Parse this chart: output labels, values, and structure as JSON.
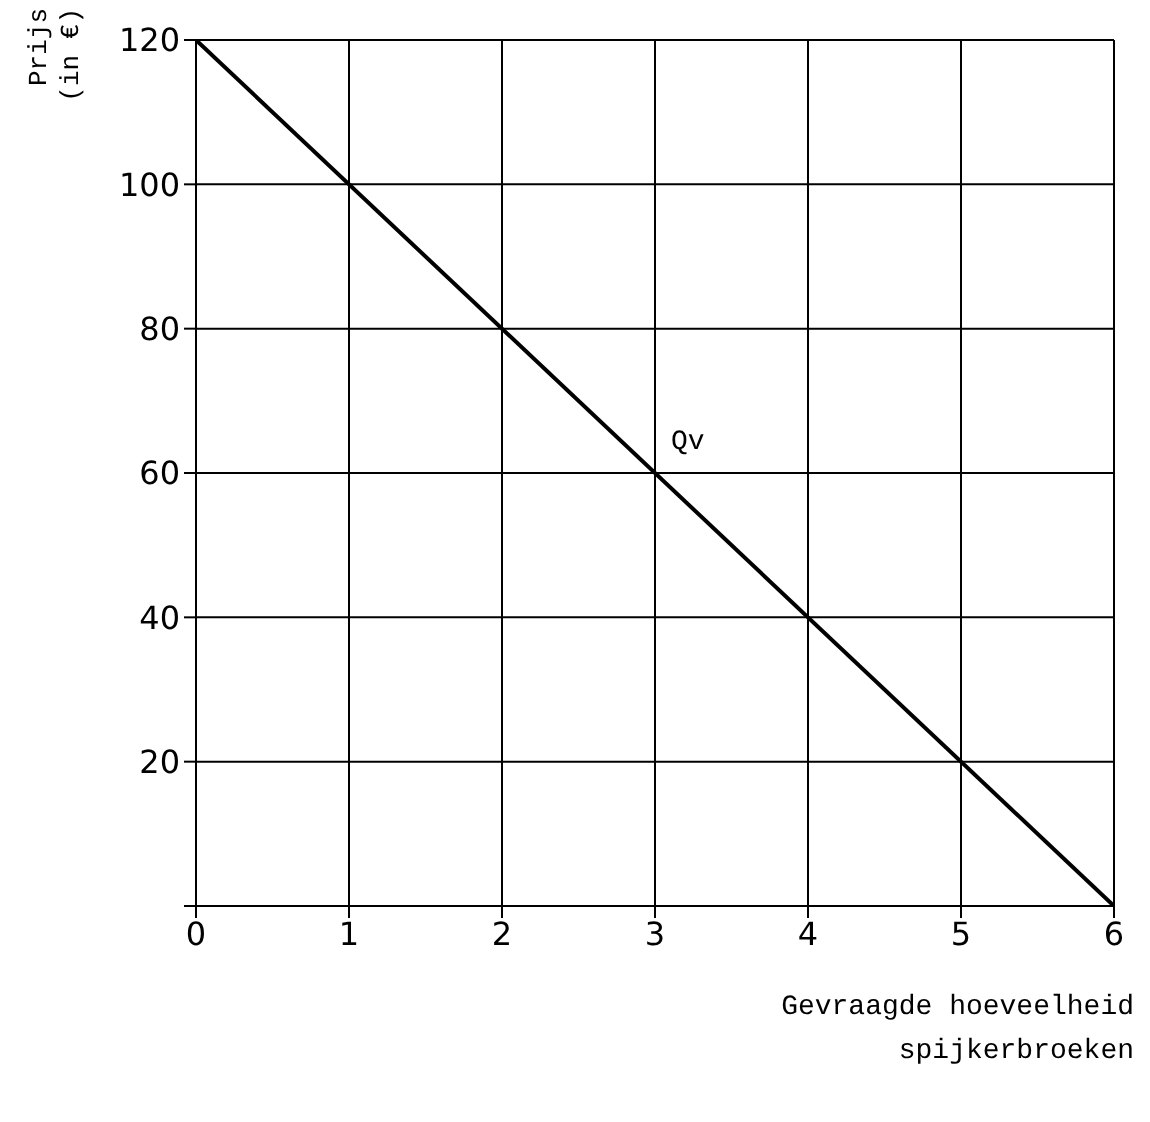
{
  "chart_data": {
    "type": "line",
    "xlabel": "Gevraagde hoeveelheid spijkerbroeken",
    "ylabel": "Prijs (in €)",
    "x": [
      0,
      6
    ],
    "series": [
      {
        "color": "#000000",
        "values": [
          120,
          0
        ]
      }
    ],
    "xlim": [
      0,
      6
    ],
    "xticks": [
      0,
      1,
      2,
      3,
      4,
      5,
      6
    ],
    "ylim": [
      0,
      120
    ],
    "yticks": [
      {
        "value": 0,
        "label": null
      },
      20,
      40,
      60,
      80,
      100,
      120
    ],
    "grid": true,
    "marker": "none",
    "line_style": "solid",
    "annotations": [
      {
        "text": "Qv",
        "x": 3,
        "y": 60
      }
    ]
  }
}
